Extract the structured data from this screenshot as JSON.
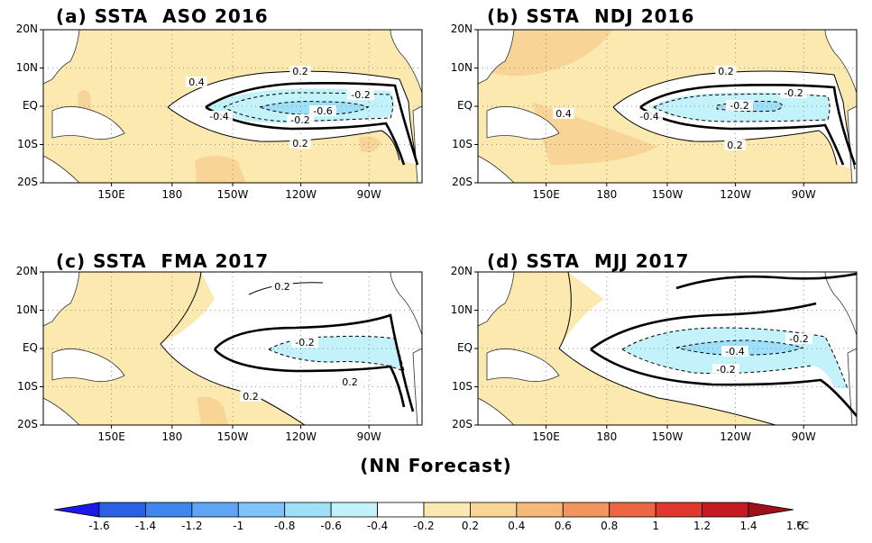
{
  "panels": [
    {
      "title": "(a) SSTA  ASO 2016",
      "contour_labels": [
        "0.4",
        "0.2",
        "-0.2",
        "-0.4",
        "-0.2",
        "-0.6",
        "0.2"
      ]
    },
    {
      "title": "(b) SSTA  NDJ 2016",
      "contour_labels": [
        "0.2",
        "0.4",
        "-0.2",
        "-0.4",
        "-0.2",
        "0.2"
      ]
    },
    {
      "title": "(c) SSTA  FMA 2017",
      "contour_labels": [
        "0.2",
        "-0.2",
        "0.2",
        "0.2"
      ]
    },
    {
      "title": "(d) SSTA  MJJ 2017",
      "contour_labels": [
        "-0.4",
        "-0.2",
        "-0.2"
      ]
    }
  ],
  "lat_labels": [
    "20N",
    "10N",
    "EQ",
    "10S",
    "20S"
  ],
  "lon_labels": [
    "150E",
    "180",
    "150W",
    "120W",
    "90W"
  ],
  "footer": "(NN Forecast)",
  "colorbar": {
    "labels": [
      "-1.6",
      "-1.4",
      "-1.2",
      "-1",
      "-0.8",
      "-0.6",
      "-0.4",
      "-0.2",
      "0.2",
      "0.4",
      "0.6",
      "0.8",
      "1",
      "1.2",
      "1.4",
      "1.6"
    ],
    "unit": "°C",
    "colors": [
      "#1a1ae6",
      "#2b5fe6",
      "#3f86ee",
      "#5fa5f5",
      "#7fc4f8",
      "#9ee0f8",
      "#c4f2fa",
      "#ffffff",
      "#fbe9b0",
      "#f8d596",
      "#f5b87a",
      "#f2945e",
      "#ed6644",
      "#e0382e",
      "#c51a22",
      "#a0101a"
    ]
  }
}
